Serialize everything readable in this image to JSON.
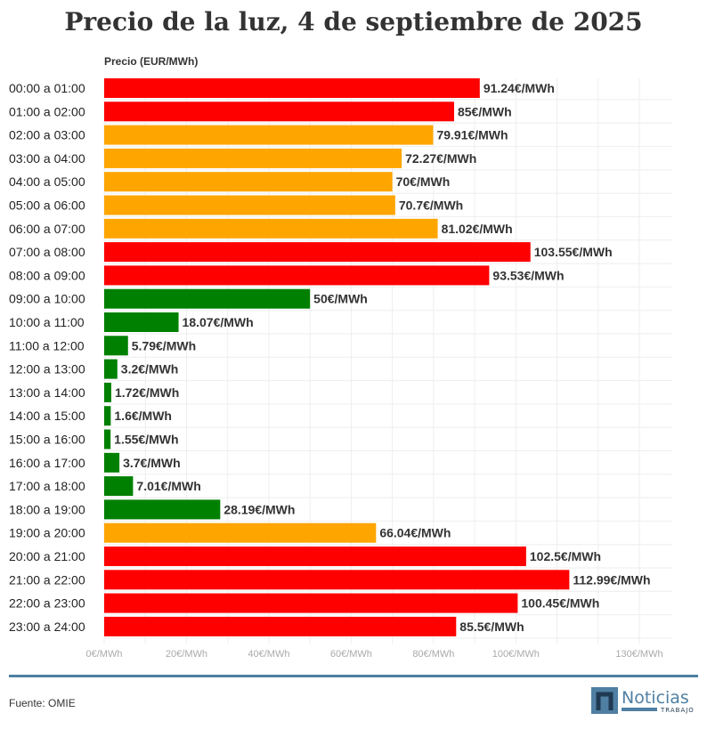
{
  "chart_data": {
    "type": "bar",
    "orientation": "horizontal",
    "title": "Precio de la luz, 4 de septiembre de 2025",
    "xlabel": "Precio (EUR/MWh)",
    "xlim": [
      0,
      138
    ],
    "x_ticks": [
      "0€/MWh",
      "20€/MWh",
      "40€/MWh",
      "60€/MWh",
      "80€/MWh",
      "100€/MWh",
      "130€/MWh"
    ],
    "x_tick_values": [
      0,
      20,
      40,
      60,
      80,
      100,
      130
    ],
    "grid": true,
    "categories": [
      "00:00 a 01:00",
      "01:00 a 02:00",
      "02:00 a 03:00",
      "03:00 a 04:00",
      "04:00 a 05:00",
      "05:00 a 06:00",
      "06:00 a 07:00",
      "07:00 a 08:00",
      "08:00 a 09:00",
      "09:00 a 10:00",
      "10:00 a 11:00",
      "11:00 a 12:00",
      "12:00 a 13:00",
      "13:00 a 14:00",
      "14:00 a 15:00",
      "15:00 a 16:00",
      "16:00 a 17:00",
      "17:00 a 18:00",
      "18:00 a 19:00",
      "19:00 a 20:00",
      "20:00 a 21:00",
      "21:00 a 22:00",
      "22:00 a 23:00",
      "23:00 a 24:00"
    ],
    "values": [
      91.24,
      85,
      79.91,
      72.27,
      70,
      70.7,
      81.02,
      103.55,
      93.53,
      50,
      18.07,
      5.79,
      3.2,
      1.72,
      1.6,
      1.55,
      3.7,
      7.01,
      28.19,
      66.04,
      102.5,
      112.99,
      100.45,
      85.5
    ],
    "data_labels": [
      "91.24€/MWh",
      "85€/MWh",
      "79.91€/MWh",
      "72.27€/MWh",
      "70€/MWh",
      "70.7€/MWh",
      "81.02€/MWh",
      "103.55€/MWh",
      "93.53€/MWh",
      "50€/MWh",
      "18.07€/MWh",
      "5.79€/MWh",
      "3.2€/MWh",
      "1.72€/MWh",
      "1.6€/MWh",
      "1.55€/MWh",
      "3.7€/MWh",
      "7.01€/MWh",
      "28.19€/MWh",
      "66.04€/MWh",
      "102.5€/MWh",
      "112.99€/MWh",
      "100.45€/MWh",
      "85.5€/MWh"
    ],
    "levels": [
      "high",
      "high",
      "mid",
      "mid",
      "mid",
      "mid",
      "mid",
      "high",
      "high",
      "low",
      "low",
      "low",
      "low",
      "low",
      "low",
      "low",
      "low",
      "low",
      "low",
      "mid",
      "high",
      "high",
      "high",
      "high"
    ],
    "colors": {
      "high": "#ff0000",
      "mid": "#ffa500",
      "low": "#008000"
    }
  },
  "footer": {
    "source": "Fuente: OMIE",
    "logo_text": "Noticias",
    "logo_sub": "TRABAJO"
  }
}
